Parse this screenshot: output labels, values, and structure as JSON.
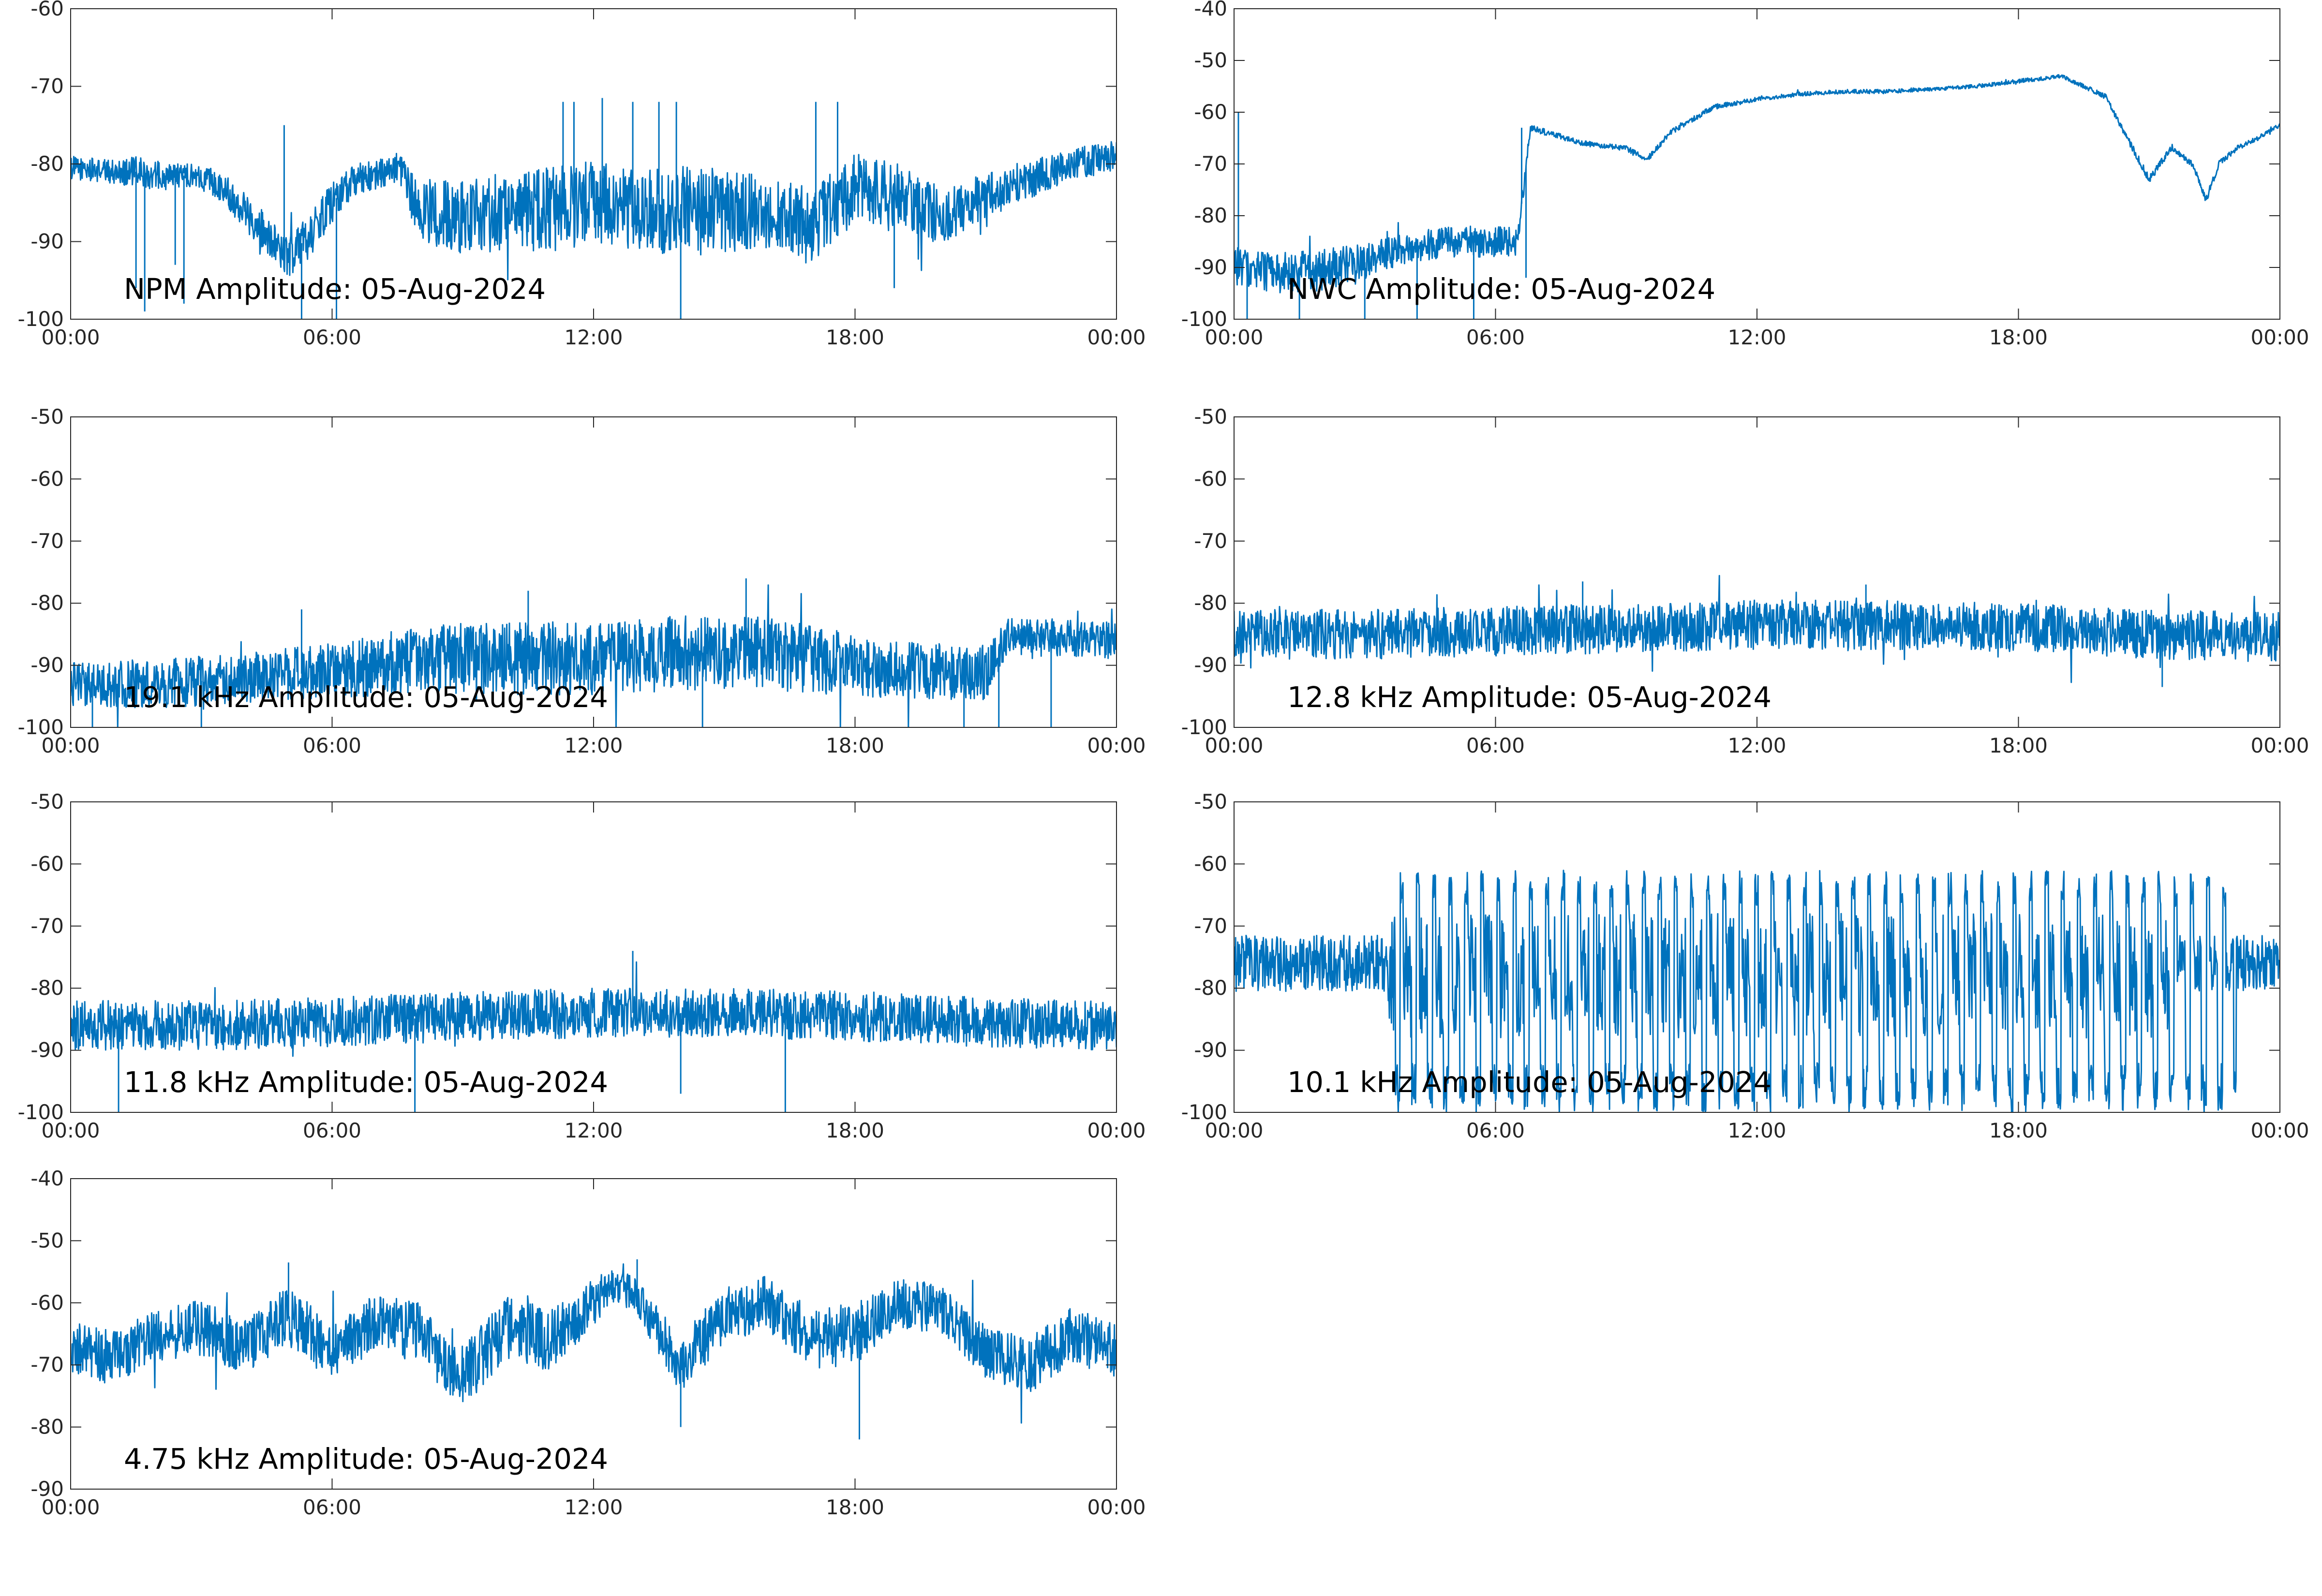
{
  "colors": {
    "trace": "#0072bd",
    "axis": "#262626",
    "background": "#ffffff"
  },
  "x_ticks": [
    "00:00",
    "06:00",
    "12:00",
    "18:00",
    "00:00"
  ],
  "chart_data": [
    {
      "type": "line",
      "title": "NPM Amplitude: 05-Aug-2024",
      "x_range_hours": [
        0,
        24
      ],
      "ylim": [
        -100,
        -60
      ],
      "yticks": [
        -100,
        -90,
        -80,
        -70,
        -60
      ],
      "grid": false,
      "series": [
        {
          "x_hours": [
            0,
            1,
            1.5,
            2,
            2.5,
            3,
            3.5,
            4,
            4.5,
            5,
            5.5,
            6,
            6.5,
            7,
            7.5,
            8,
            9,
            10,
            11,
            12,
            13,
            14,
            15,
            16,
            17,
            18,
            19,
            20,
            21,
            22,
            23,
            24
          ],
          "center": [
            -80.5,
            -81,
            -81,
            -81.5,
            -81.5,
            -81.5,
            -83,
            -86,
            -89,
            -92,
            -89,
            -85,
            -82,
            -81.5,
            -80.5,
            -86,
            -87,
            -86,
            -86,
            -85,
            -86,
            -86,
            -86,
            -86,
            -88,
            -83,
            -84,
            -87,
            -84,
            -82,
            -80,
            -79
          ],
          "spread": [
            1.5,
            1.5,
            2,
            2,
            1.5,
            1.5,
            2,
            2.5,
            2.5,
            2.5,
            3,
            2.5,
            2,
            2,
            2,
            4,
            5,
            5,
            5.5,
            5.5,
            5,
            6,
            5.5,
            5,
            5,
            4.5,
            4,
            3.5,
            3,
            2.5,
            2,
            2
          ],
          "spikes": [
            {
              "h": 1.5,
              "y": -96
            },
            {
              "h": 1.7,
              "y": -99
            },
            {
              "h": 2.4,
              "y": -93
            },
            {
              "h": 2.6,
              "y": -98
            },
            {
              "h": 4.9,
              "y": -75
            },
            {
              "h": 5.3,
              "y": -100
            },
            {
              "h": 6.1,
              "y": -100
            },
            {
              "h": 11.3,
              "y": -72
            },
            {
              "h": 11.55,
              "y": -72
            },
            {
              "h": 12.2,
              "y": -71.5
            },
            {
              "h": 12.9,
              "y": -72
            },
            {
              "h": 13.5,
              "y": -72
            },
            {
              "h": 13.9,
              "y": -72
            },
            {
              "h": 14.0,
              "y": -100
            },
            {
              "h": 17.1,
              "y": -72
            },
            {
              "h": 17.6,
              "y": -72
            },
            {
              "h": 18.9,
              "y": -96
            }
          ]
        }
      ]
    },
    {
      "type": "line",
      "title": "NWC Amplitude: 05-Aug-2024",
      "x_range_hours": [
        0,
        24
      ],
      "ylim": [
        -100,
        -40
      ],
      "yticks": [
        -100,
        -90,
        -80,
        -70,
        -60,
        -50,
        -40
      ],
      "grid": false,
      "series": [
        {
          "x_hours": [
            0,
            1,
            2,
            3,
            4,
            5,
            6,
            6.5,
            6.8,
            7,
            8,
            9,
            9.5,
            10,
            11,
            12,
            13,
            14,
            15,
            16,
            17,
            18,
            19,
            20,
            20.5,
            21,
            21.5,
            22,
            22.3,
            22.6,
            23,
            23.5,
            24
          ],
          "center": [
            -90,
            -91,
            -90.5,
            -89,
            -86,
            -85,
            -85,
            -85,
            -63,
            -63.5,
            -66,
            -67,
            -69,
            -64,
            -59,
            -57.5,
            -56.5,
            -56,
            -56,
            -55.5,
            -55,
            -54,
            -53,
            -57,
            -65,
            -73,
            -67,
            -70,
            -77,
            -70,
            -67,
            -65,
            -62.5
          ],
          "spread": [
            4,
            4,
            4,
            3.5,
            3,
            3,
            3,
            3,
            0.6,
            0.6,
            0.5,
            0.5,
            0.6,
            0.5,
            0.5,
            0.4,
            0.4,
            0.4,
            0.4,
            0.4,
            0.4,
            0.4,
            0.4,
            0.5,
            0.6,
            0.8,
            0.6,
            0.6,
            0.8,
            0.6,
            0.5,
            0.4,
            0.4
          ],
          "spikes": [
            {
              "h": 0.1,
              "y": -60
            },
            {
              "h": 0.3,
              "y": -100
            },
            {
              "h": 1.5,
              "y": -100
            },
            {
              "h": 3.0,
              "y": -100
            },
            {
              "h": 4.2,
              "y": -100
            },
            {
              "h": 5.5,
              "y": -100
            },
            {
              "h": 6.6,
              "y": -63
            },
            {
              "h": 6.7,
              "y": -92
            },
            {
              "h": 6.9,
              "y": -63
            }
          ]
        }
      ]
    },
    {
      "type": "line",
      "title": "19.1 kHz Amplitude: 05-Aug-2024",
      "x_range_hours": [
        0,
        24
      ],
      "ylim": [
        -100,
        -50
      ],
      "yticks": [
        -100,
        -90,
        -80,
        -70,
        -60,
        -50
      ],
      "grid": false,
      "series": [
        {
          "x_hours": [
            0,
            2,
            4,
            6,
            8,
            10,
            12,
            14,
            16,
            18,
            20,
            21,
            21.5,
            22,
            24
          ],
          "center": [
            -93,
            -93,
            -92,
            -91,
            -89,
            -89,
            -89,
            -88,
            -88,
            -90,
            -91,
            -91,
            -85,
            -85.5,
            -86
          ],
          "spread": [
            3.5,
            4,
            4,
            4.5,
            5.5,
            6,
            6,
            6,
            6,
            5,
            4.5,
            4.5,
            3,
            3,
            3
          ],
          "spikes": [
            {
              "h": 0.5,
              "y": -100
            },
            {
              "h": 3.0,
              "y": -100
            },
            {
              "h": 5.3,
              "y": -81
            },
            {
              "h": 10.5,
              "y": -78
            },
            {
              "h": 14.5,
              "y": -100
            },
            {
              "h": 15.5,
              "y": -76
            },
            {
              "h": 20.5,
              "y": -100
            },
            {
              "h": 21.3,
              "y": -100
            },
            {
              "h": 22.5,
              "y": -100
            }
          ]
        }
      ]
    },
    {
      "type": "line",
      "title": "12.8 kHz Amplitude: 05-Aug-2024",
      "x_range_hours": [
        0,
        24
      ],
      "ylim": [
        -100,
        -50
      ],
      "yticks": [
        -100,
        -90,
        -80,
        -70,
        -60,
        -50
      ],
      "grid": false,
      "series": [
        {
          "x_hours": [
            0,
            3,
            6,
            9,
            12,
            15,
            18,
            21,
            24
          ],
          "center": [
            -85,
            -85,
            -84.5,
            -84,
            -83.5,
            -83.5,
            -84,
            -85,
            -85.5
          ],
          "spread": [
            4,
            4,
            4,
            4,
            4,
            4,
            4,
            4,
            4
          ],
          "spikes": [
            {
              "h": 8.0,
              "y": -76.5
            },
            {
              "h": 14.5,
              "y": -77
            },
            {
              "h": 21.3,
              "y": -93.5
            }
          ]
        }
      ]
    },
    {
      "type": "line",
      "title": "11.8 kHz Amplitude: 05-Aug-2024",
      "x_range_hours": [
        0,
        24
      ],
      "ylim": [
        -100,
        -50
      ],
      "yticks": [
        -100,
        -90,
        -80,
        -70,
        -60,
        -50
      ],
      "grid": false,
      "series": [
        {
          "x_hours": [
            0,
            3,
            6,
            9,
            12,
            15,
            18,
            21,
            24
          ],
          "center": [
            -86,
            -86,
            -85.5,
            -84.5,
            -84,
            -84,
            -84.5,
            -85.5,
            -86
          ],
          "spread": [
            4,
            4,
            4,
            4,
            4,
            4,
            4,
            4,
            4
          ],
          "spikes": [
            {
              "h": 1.1,
              "y": -100
            },
            {
              "h": 7.9,
              "y": -100
            },
            {
              "h": 12.9,
              "y": -74
            },
            {
              "h": 14.0,
              "y": -97
            },
            {
              "h": 16.4,
              "y": -100
            }
          ]
        }
      ]
    },
    {
      "type": "line",
      "title": "10.1 kHz Amplitude: 05-Aug-2024",
      "x_range_hours": [
        0,
        24
      ],
      "ylim": [
        -100,
        -50
      ],
      "yticks": [
        -100,
        -90,
        -80,
        -70,
        -60,
        -50
      ],
      "grid": false,
      "series": [
        {
          "x_hours": [
            0,
            3.5,
            3.6,
            21.5,
            21.6,
            24
          ],
          "center": [
            -76,
            -76,
            -78,
            -78,
            -76,
            -76
          ],
          "spread": [
            4.5,
            4.5,
            10,
            10,
            4.5,
            4.5
          ],
          "dropouts": {
            "start_h": 3.7,
            "end_h": 23.0,
            "period_h": 0.37,
            "min": -100,
            "peak": -64
          }
        }
      ]
    },
    {
      "type": "line",
      "title": "4.75 kHz Amplitude: 05-Aug-2024",
      "x_range_hours": [
        0,
        24
      ],
      "ylim": [
        -90,
        -40
      ],
      "yticks": [
        -90,
        -80,
        -70,
        -60,
        -50,
        -40
      ],
      "grid": false,
      "series": [
        {
          "x_hours": [
            0,
            1,
            2,
            3,
            4,
            5,
            6,
            7,
            8,
            9,
            10,
            11,
            12,
            12.5,
            13,
            14,
            15,
            16,
            17,
            18,
            19,
            20,
            21,
            22,
            23,
            24
          ],
          "center": [
            -67,
            -69,
            -65,
            -64,
            -67,
            -62,
            -68,
            -63,
            -65,
            -72,
            -64,
            -66,
            -60,
            -57,
            -59,
            -70,
            -62,
            -60,
            -66,
            -65,
            -60,
            -61,
            -68,
            -70,
            -65,
            -68
          ],
          "spread": [
            4,
            4.5,
            4.5,
            4.5,
            4.5,
            5,
            4.5,
            4.5,
            5,
            5,
            5,
            5,
            4,
            2.5,
            3,
            4.5,
            4.5,
            4.5,
            5,
            5,
            4,
            4,
            4.5,
            4.5,
            4.5,
            4.5
          ],
          "spikes": [
            {
              "h": 14.0,
              "y": -80
            },
            {
              "h": 18.1,
              "y": -82
            },
            {
              "h": 13.0,
              "y": -53
            },
            {
              "h": 5.0,
              "y": -53.5
            }
          ]
        }
      ]
    }
  ]
}
